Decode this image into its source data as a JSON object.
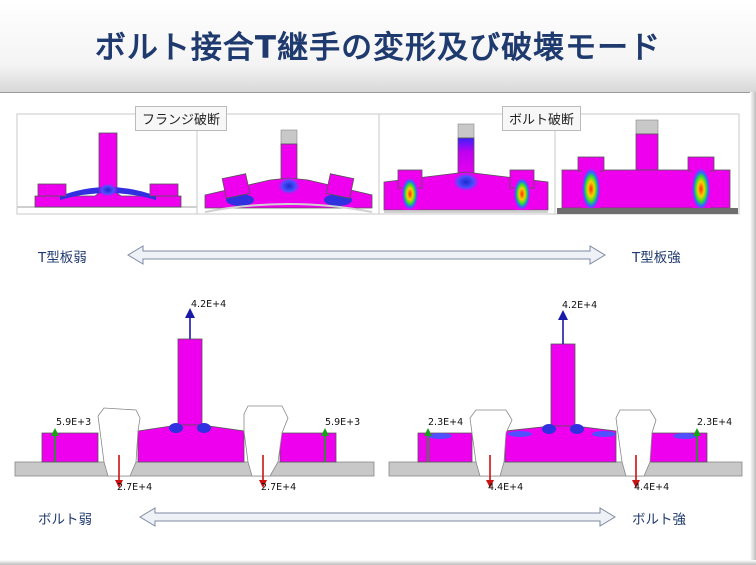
{
  "title": "ボルト接合T継手の変形及び破壊モード",
  "top": {
    "flange_label": "フランジ破断",
    "bolt_label": "ボルト破断",
    "left_label": "T型板弱",
    "right_label": "T型板強"
  },
  "bottom": {
    "left_label": "ボルト弱",
    "right_label": "ボルト強",
    "left_model": {
      "top_load": "4.2E+4",
      "side_left": "5.9E+3",
      "side_right": "5.9E+3",
      "bolt_left": "2.7E+4",
      "bolt_right": "2.7E+4"
    },
    "right_model": {
      "top_load": "4.2E+4",
      "side_left": "2.3E+4",
      "side_right": "2.3E+4",
      "bolt_left": "4.4E+4",
      "bolt_right": "4.4E+4"
    }
  },
  "colors": {
    "title": "#1f3a6e",
    "magenta": "#ee00ee",
    "stress_blue": "#3030e0",
    "plate_gray": "#c8c8c8",
    "arrow_blue": "#1a1aa8",
    "arrow_green": "#1aa01a",
    "arrow_red": "#cc1111"
  }
}
